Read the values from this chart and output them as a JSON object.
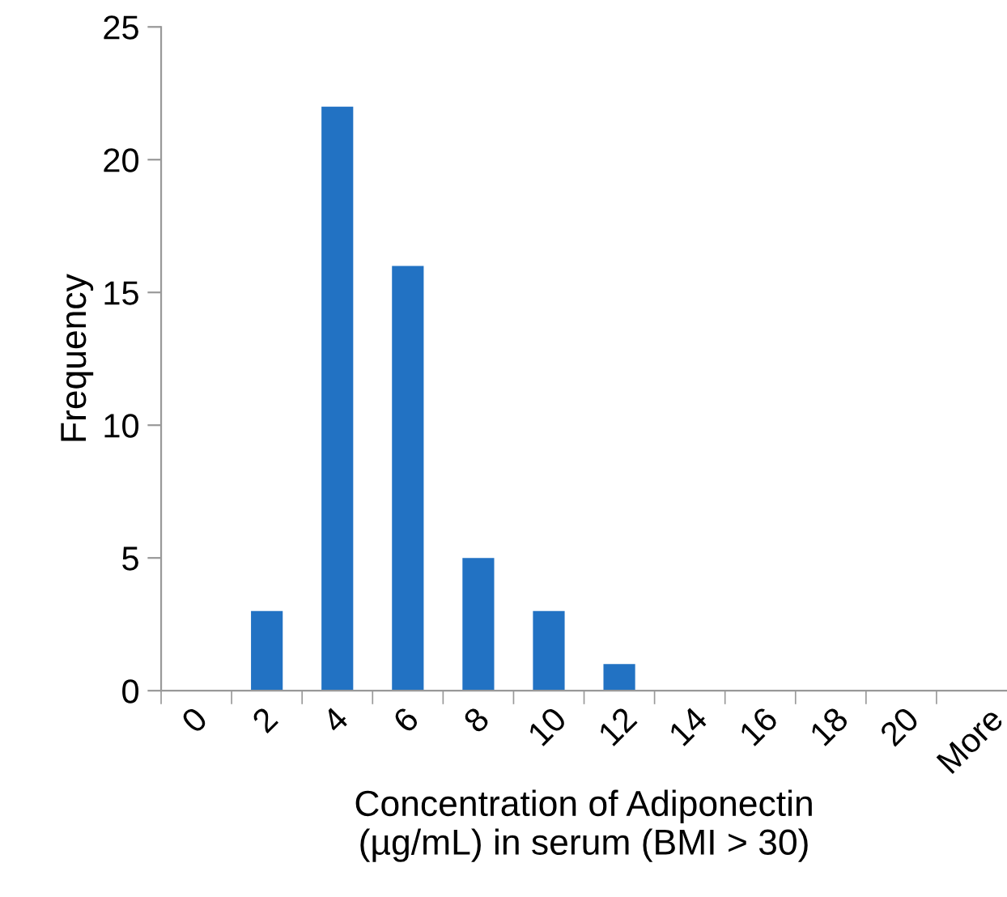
{
  "chart_data": {
    "type": "bar",
    "xlabel": "Concentration of Adiponectin\n(µg/mL) in serum (BMI > 30)",
    "ylabel": "Frequency",
    "categories": [
      "0",
      "2",
      "4",
      "6",
      "8",
      "10",
      "12",
      "14",
      "16",
      "18",
      "20",
      "More"
    ],
    "values": [
      0,
      3,
      22,
      16,
      5,
      3,
      1,
      0,
      0,
      0,
      0,
      0
    ],
    "color": "#2272c3",
    "ylim": [
      0,
      25
    ],
    "yticks": [
      0,
      5,
      10,
      15,
      20,
      25
    ],
    "grid": false,
    "legend": false
  }
}
